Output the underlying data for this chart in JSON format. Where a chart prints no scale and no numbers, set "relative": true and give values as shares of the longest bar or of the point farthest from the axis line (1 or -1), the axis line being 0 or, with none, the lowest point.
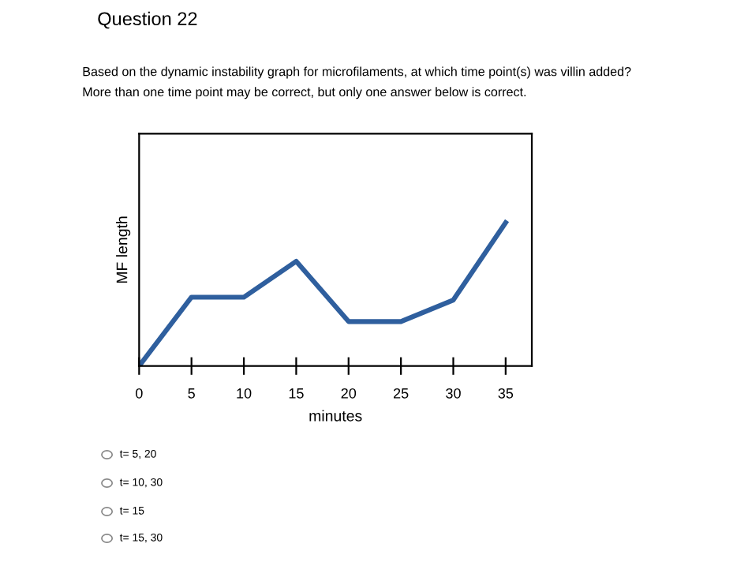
{
  "chart_data": {
    "type": "line",
    "title": "Question 22",
    "subtitle": "Based on the dynamic instability graph for microfilaments, at which time point(s) was villin added?",
    "annotations": [
      "More than one time point may be correct, but only one answer below is correct.",
      "t= 5, 20",
      "t= 10, 30",
      "t= 15",
      "t= 15, 30"
    ],
    "xlabel": "minutes",
    "ylabel": "MF length",
    "relative": true,
    "x": [
      0,
      5,
      10,
      15,
      20,
      25,
      30,
      35
    ],
    "series": [
      {
        "color": "#2f5f9e",
        "values": [
          0,
          0.48,
          0.48,
          0.73,
          0.31,
          0.31,
          0.46,
          1
        ]
      }
    ],
    "xlim": [
      0,
      37.5
    ],
    "xticks": [
      0,
      5,
      10,
      15,
      20,
      25,
      30,
      35
    ],
    "grid": false,
    "legend": false,
    "marker": "none",
    "line_style": "solid"
  }
}
